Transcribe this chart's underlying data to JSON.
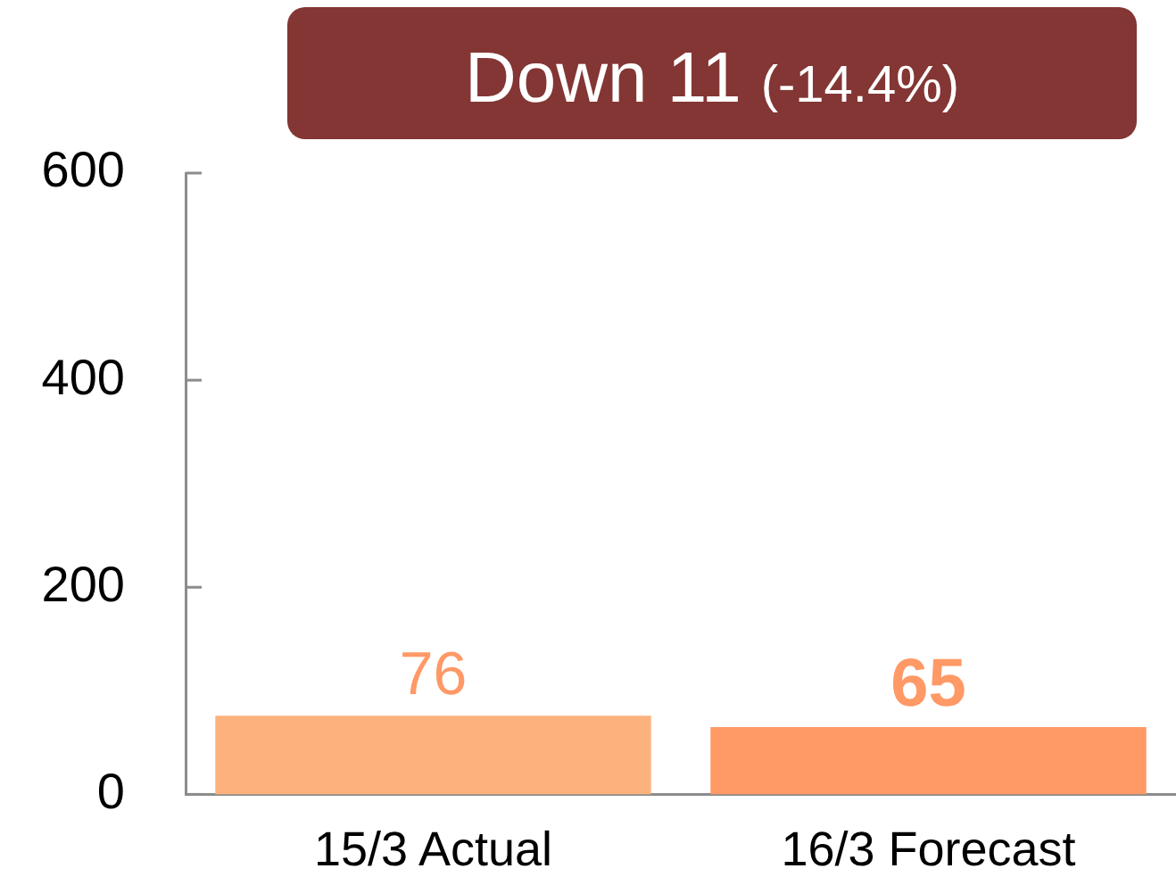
{
  "chart_data": {
    "type": "bar",
    "title": "Down 11",
    "subtitle": "(-14.4%)",
    "categories": [
      "15/3 Actual",
      "16/3 Forecast"
    ],
    "values": [
      76,
      65
    ],
    "colors": [
      "#fdb27e",
      "#ff9966"
    ],
    "ylim": [
      0,
      600
    ],
    "yticks": [
      0,
      200,
      400,
      600
    ],
    "data_labels": true
  }
}
